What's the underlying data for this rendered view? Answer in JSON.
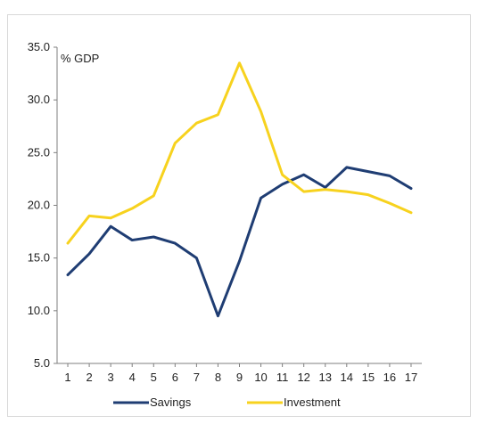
{
  "chart_data": {
    "type": "line",
    "title": "",
    "xlabel": "",
    "ylabel": "% GDP",
    "x": [
      1,
      2,
      3,
      4,
      5,
      6,
      7,
      8,
      9,
      10,
      11,
      12,
      13,
      14,
      15,
      16,
      17
    ],
    "ylim": [
      5.0,
      35.0
    ],
    "yticks": [
      "5.0",
      "10.0",
      "15.0",
      "20.0",
      "25.0",
      "30.0",
      "35.0"
    ],
    "grid": false,
    "legend_position": "bottom",
    "series": [
      {
        "name": "Savings",
        "color": "#1f3d73",
        "values": [
          13.4,
          15.4,
          18.0,
          16.7,
          17.0,
          16.4,
          15.0,
          9.5,
          14.7,
          20.7,
          22.0,
          22.9,
          21.7,
          23.6,
          23.2,
          22.8,
          21.6
        ]
      },
      {
        "name": "Investment",
        "color": "#f7d21e",
        "values": [
          16.4,
          19.0,
          18.8,
          19.7,
          20.9,
          25.9,
          27.8,
          28.6,
          33.5,
          28.9,
          22.9,
          21.3,
          21.5,
          21.3,
          21.0,
          20.2,
          19.3
        ]
      }
    ]
  }
}
